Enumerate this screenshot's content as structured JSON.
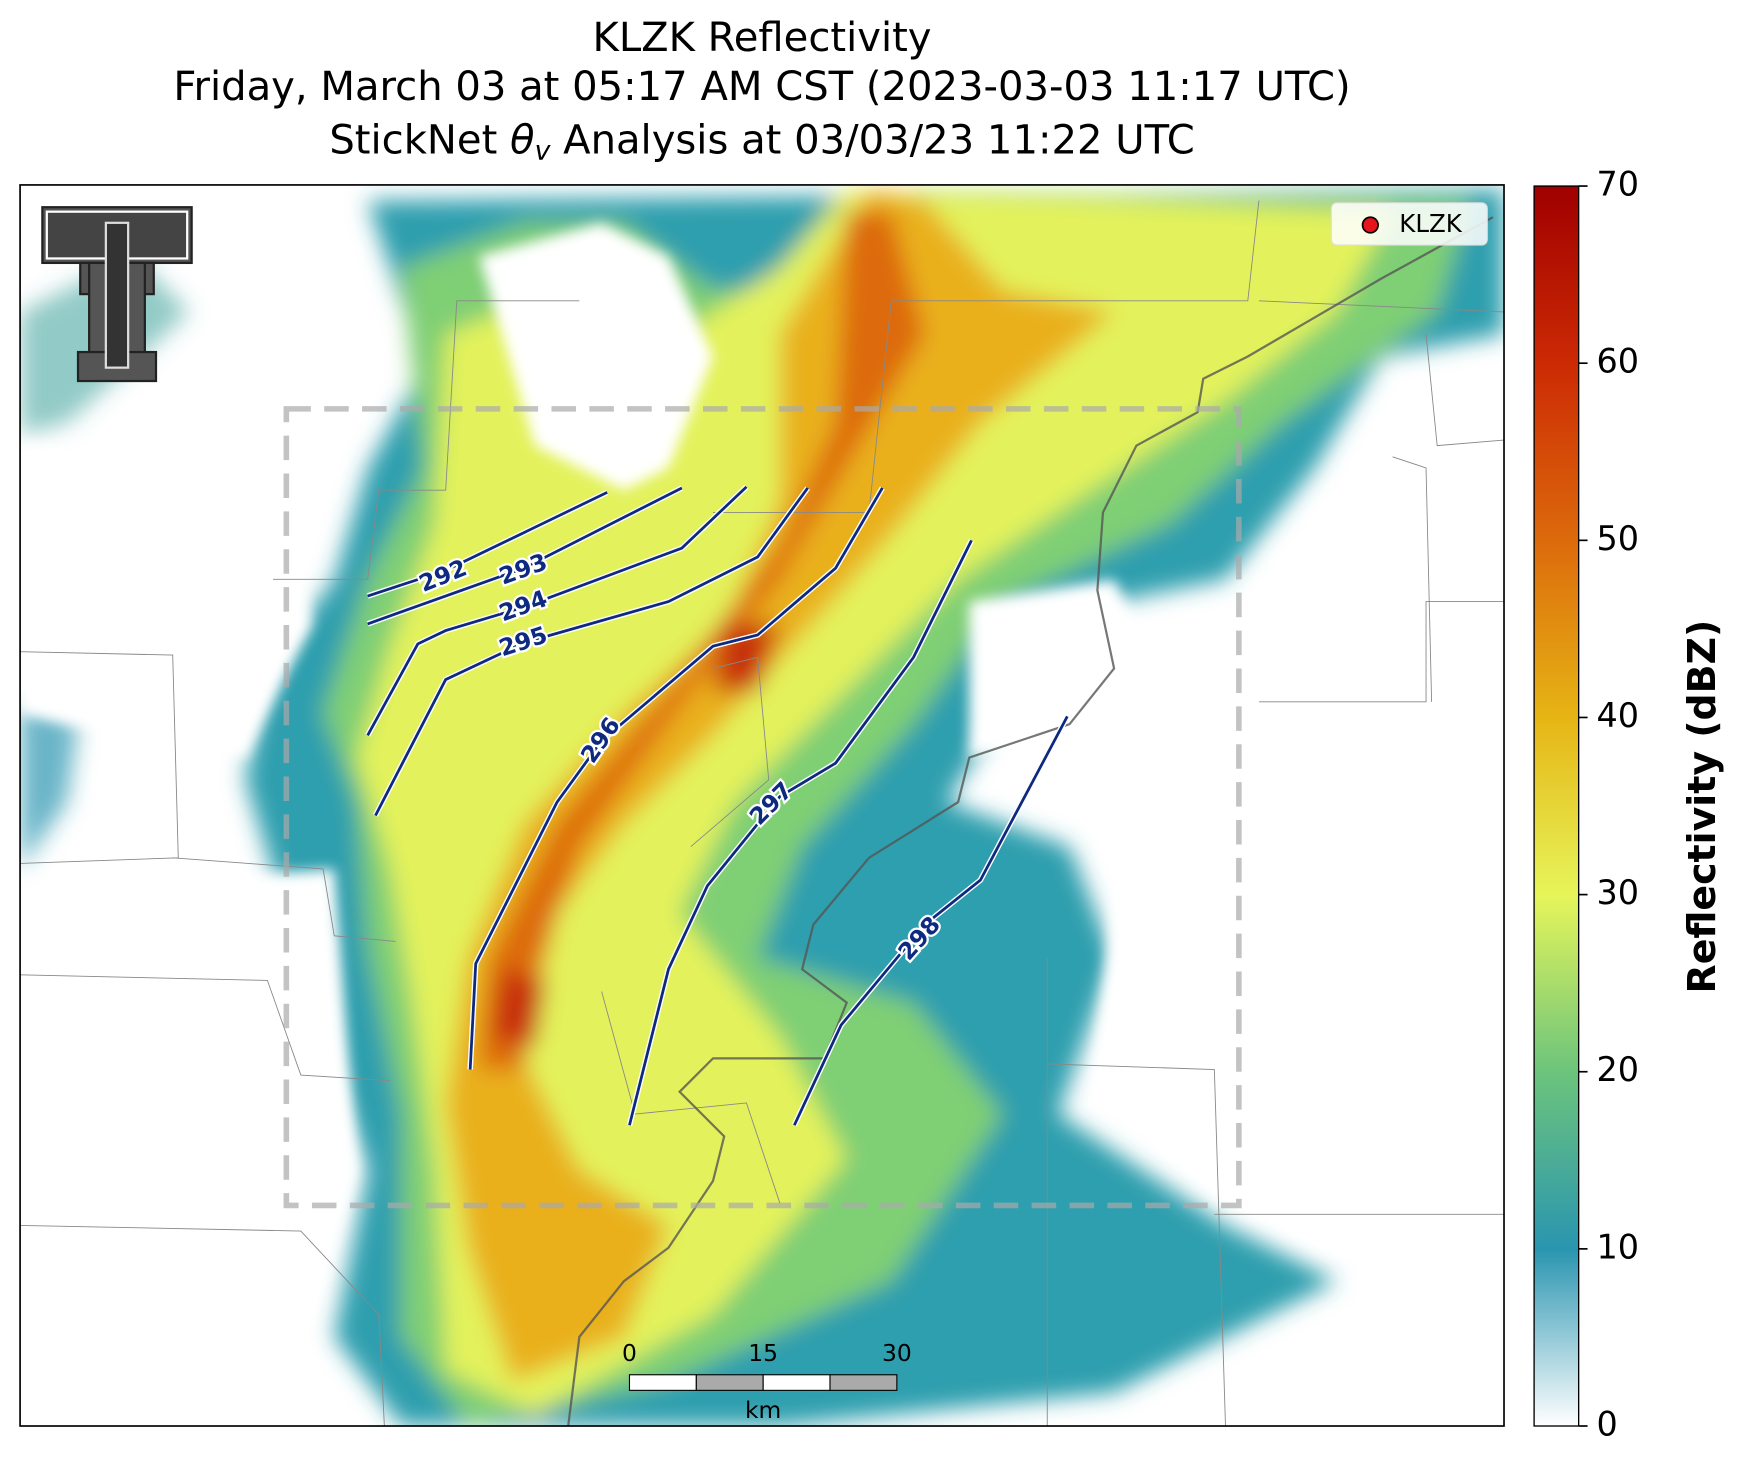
{
  "title": [
    "KLZK Reflectivity",
    "Friday, March 03 at 05:17 AM CST (2023-03-03 11:17 UTC)"
  ],
  "subtitle_parts": [
    "StickNet ",
    "θ",
    "v",
    " Analysis at 03/03/23 11:22 UTC"
  ],
  "legend": {
    "label": "KLZK",
    "color": "#e8141b"
  },
  "contours": {
    "color": "#0d2a80",
    "levels": [
      292,
      293,
      294,
      295,
      296,
      297,
      298
    ]
  },
  "colorbar": {
    "label": "Reflectivity (dBZ)",
    "lim": [
      0,
      70
    ],
    "ticks": [
      0,
      10,
      20,
      30,
      40,
      50,
      60,
      70
    ],
    "colors": [
      "#ffffff",
      "#2a95b0",
      "#6cc47c",
      "#e6f55a",
      "#e6b515",
      "#dc6a0c",
      "#cc2a04",
      "#a00000"
    ]
  },
  "scale_bar": {
    "ticks": [
      0,
      15,
      30
    ],
    "unit": "km"
  }
}
